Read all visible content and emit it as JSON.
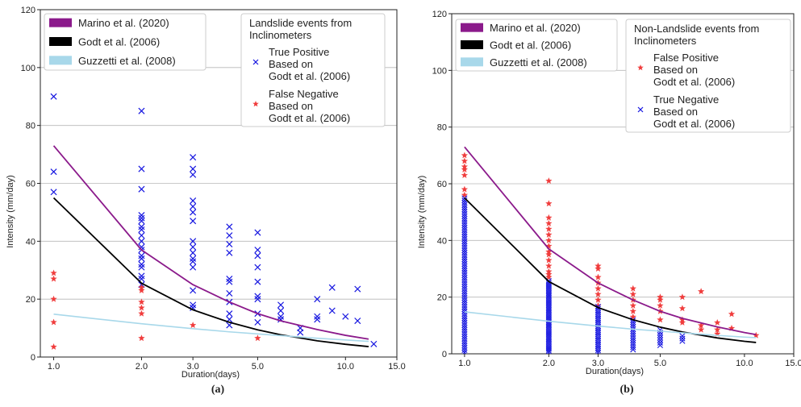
{
  "figure_caption_fragment": "",
  "panel_labels": [
    "(a)",
    "(b)"
  ],
  "chart_data": [
    {
      "type": "scatter",
      "panel_label": "(a)",
      "xlabel": "Duration(days)",
      "ylabel": "Intensity (mm/day)",
      "xscale": "log",
      "xlim": [
        0.9,
        15.0
      ],
      "ylim": [
        0,
        120
      ],
      "xticks": [
        "1.0",
        "2.0",
        "3.0",
        "5.0",
        "10.0",
        "15.0"
      ],
      "yticks": [
        "0",
        "20",
        "40",
        "60",
        "80",
        "100",
        "120"
      ],
      "grid": "horizontal",
      "curve_legend": [
        "Marino et al. (2020)",
        "Godt et al. (2006)",
        "Guzzetti et al. (2008)"
      ],
      "points_legend_title": [
        "Landslide events from",
        "Inclinometers"
      ],
      "points_legend": [
        {
          "label": [
            "True Positive",
            "Based on",
            "Godt et al. (2006)"
          ],
          "marker": "x",
          "color": "#1515e0"
        },
        {
          "label": [
            "False Negative",
            "Based on",
            " Godt et al. (2006)"
          ],
          "marker": "star",
          "color": "#f03c3c"
        }
      ],
      "curves": [
        {
          "name": "Marino et al. (2020)",
          "color": "#8b1a8b",
          "x": [
            1,
            2,
            3,
            4,
            5,
            6,
            8,
            10,
            12
          ],
          "y": [
            73,
            37,
            25,
            19,
            15,
            12.5,
            9.5,
            7.5,
            6.2
          ]
        },
        {
          "name": "Godt et al. (2006)",
          "color": "#000000",
          "x": [
            1,
            2,
            3,
            4,
            5,
            6,
            8,
            10,
            12
          ],
          "y": [
            55,
            25.5,
            16.3,
            12,
            9.4,
            7.7,
            5.6,
            4.4,
            3.6
          ]
        },
        {
          "name": "Guzzetti et al. (2008)",
          "color": "#a8d8ea",
          "x": [
            1,
            2,
            3,
            4,
            5,
            6,
            8,
            10,
            12
          ],
          "y": [
            14.8,
            11.5,
            9.8,
            8.7,
            8,
            7.4,
            6.5,
            5.9,
            5.4
          ]
        }
      ],
      "series": [
        {
          "name": "True Positive",
          "marker": "x",
          "color": "#1515e0",
          "points": [
            [
              1,
              90
            ],
            [
              1,
              64
            ],
            [
              1,
              57
            ],
            [
              2,
              85
            ],
            [
              2,
              65
            ],
            [
              2,
              58
            ],
            [
              2,
              49
            ],
            [
              2,
              48
            ],
            [
              2,
              47
            ],
            [
              2,
              45
            ],
            [
              2,
              44
            ],
            [
              2,
              42
            ],
            [
              2,
              40
            ],
            [
              2,
              38
            ],
            [
              2,
              37
            ],
            [
              2,
              35
            ],
            [
              2,
              34
            ],
            [
              2,
              32
            ],
            [
              2,
              31
            ],
            [
              2,
              28
            ],
            [
              2,
              27
            ],
            [
              2,
              25
            ],
            [
              3,
              69
            ],
            [
              3,
              65
            ],
            [
              3,
              63
            ],
            [
              3,
              54
            ],
            [
              3,
              52
            ],
            [
              3,
              50
            ],
            [
              3,
              47
            ],
            [
              3,
              40
            ],
            [
              3,
              38
            ],
            [
              3,
              36
            ],
            [
              3,
              34
            ],
            [
              3,
              33
            ],
            [
              3,
              31
            ],
            [
              3,
              23
            ],
            [
              3,
              18
            ],
            [
              3,
              17
            ],
            [
              4,
              45
            ],
            [
              4,
              42
            ],
            [
              4,
              39
            ],
            [
              4,
              36
            ],
            [
              4,
              27
            ],
            [
              4,
              26
            ],
            [
              4,
              22
            ],
            [
              4,
              19
            ],
            [
              4,
              15
            ],
            [
              4,
              13
            ],
            [
              4,
              11
            ],
            [
              5,
              43
            ],
            [
              5,
              37
            ],
            [
              5,
              35
            ],
            [
              5,
              31
            ],
            [
              5,
              26
            ],
            [
              5,
              21
            ],
            [
              5,
              20
            ],
            [
              5,
              15
            ],
            [
              5,
              12
            ],
            [
              6,
              18
            ],
            [
              6,
              16
            ],
            [
              6,
              14
            ],
            [
              6,
              13
            ],
            [
              7,
              10
            ],
            [
              7,
              8.5
            ],
            [
              8,
              20
            ],
            [
              8,
              14
            ],
            [
              8,
              13
            ],
            [
              9,
              24
            ],
            [
              9,
              16
            ],
            [
              10,
              14
            ],
            [
              11,
              23.5
            ],
            [
              11,
              12.5
            ],
            [
              12.5,
              4.5
            ]
          ]
        },
        {
          "name": "False Negative",
          "marker": "star",
          "color": "#f03c3c",
          "points": [
            [
              1,
              29
            ],
            [
              1,
              27
            ],
            [
              1,
              20
            ],
            [
              1,
              12
            ],
            [
              1,
              3.5
            ],
            [
              2,
              24
            ],
            [
              2,
              23
            ],
            [
              2,
              19
            ],
            [
              2,
              17
            ],
            [
              2,
              15
            ],
            [
              2,
              6.5
            ],
            [
              3,
              11
            ],
            [
              5,
              6.5
            ]
          ]
        }
      ]
    },
    {
      "type": "scatter",
      "panel_label": "(b)",
      "xlabel": "Duration(days)",
      "ylabel": "Intensity (mm/day)",
      "xscale": "log",
      "xlim": [
        0.9,
        15.0
      ],
      "ylim": [
        0,
        120
      ],
      "xticks": [
        "1.0",
        "2.0",
        "3.0",
        "5.0",
        "10.0",
        "15.0"
      ],
      "yticks": [
        "0",
        "20",
        "40",
        "60",
        "80",
        "100",
        "120"
      ],
      "grid": "horizontal",
      "curve_legend": [
        "Marino et al. (2020)",
        "Godt et al. (2006)",
        "Guzzetti et al. (2008)"
      ],
      "points_legend_title": [
        "Non-Landslide events from",
        "Inclinometers"
      ],
      "points_legend": [
        {
          "label": [
            "False Positive",
            "Based on",
            "Godt et al. (2006)"
          ],
          "marker": "star",
          "color": "#f03c3c"
        },
        {
          "label": [
            "True Negative",
            "Based on",
            " Godt et al. (2006)"
          ],
          "marker": "x",
          "color": "#1515e0"
        }
      ],
      "curves": [
        {
          "name": "Marino et al. (2020)",
          "color": "#8b1a8b",
          "x": [
            1,
            2,
            3,
            4,
            5,
            6,
            8,
            10,
            11
          ],
          "y": [
            73,
            37,
            25,
            19,
            15,
            12.5,
            9.5,
            7.5,
            6.8
          ]
        },
        {
          "name": "Godt et al. (2006)",
          "color": "#000000",
          "x": [
            1,
            2,
            3,
            4,
            5,
            6,
            8,
            10,
            11
          ],
          "y": [
            55,
            25.5,
            16.3,
            12,
            9.4,
            7.7,
            5.6,
            4.4,
            4
          ]
        },
        {
          "name": "Guzzetti et al. (2008)",
          "color": "#a8d8ea",
          "x": [
            1,
            2,
            3,
            4,
            5,
            6,
            8,
            10,
            11
          ],
          "y": [
            14.8,
            11.5,
            9.8,
            8.7,
            8,
            7.4,
            6.5,
            5.9,
            5.7
          ]
        }
      ],
      "series": [
        {
          "name": "False Positive",
          "marker": "star",
          "color": "#f03c3c",
          "points": [
            [
              1,
              70
            ],
            [
              1,
              68
            ],
            [
              1,
              66
            ],
            [
              1,
              65
            ],
            [
              1,
              63
            ],
            [
              1,
              58
            ],
            [
              1,
              56
            ],
            [
              2,
              61
            ],
            [
              2,
              53
            ],
            [
              2,
              48
            ],
            [
              2,
              46
            ],
            [
              2,
              44
            ],
            [
              2,
              42
            ],
            [
              2,
              40
            ],
            [
              2,
              38
            ],
            [
              2,
              36
            ],
            [
              2,
              35
            ],
            [
              2,
              33
            ],
            [
              2,
              31
            ],
            [
              2,
              29
            ],
            [
              2,
              28
            ],
            [
              2,
              27
            ],
            [
              3,
              31
            ],
            [
              3,
              30
            ],
            [
              3,
              27
            ],
            [
              3,
              25
            ],
            [
              3,
              23
            ],
            [
              3,
              21
            ],
            [
              3,
              19
            ],
            [
              3,
              17
            ],
            [
              4,
              23
            ],
            [
              4,
              21
            ],
            [
              4,
              19
            ],
            [
              4,
              17
            ],
            [
              4,
              15
            ],
            [
              4,
              13
            ],
            [
              5,
              20
            ],
            [
              5,
              19
            ],
            [
              5,
              17
            ],
            [
              5,
              15
            ],
            [
              5,
              12
            ],
            [
              6,
              20
            ],
            [
              6,
              16
            ],
            [
              6,
              12
            ],
            [
              6,
              11
            ],
            [
              7,
              22
            ],
            [
              7,
              10
            ],
            [
              7,
              8.5
            ],
            [
              8,
              11
            ],
            [
              8,
              8.5
            ],
            [
              8,
              7
            ],
            [
              9,
              14
            ],
            [
              9,
              9
            ],
            [
              11,
              6.5
            ]
          ]
        },
        {
          "name": "True Negative",
          "marker": "x",
          "color": "#1515e0",
          "columns": [
            [
              1,
              0.5,
              55,
              0.8
            ],
            [
              2,
              0.5,
              26,
              0.6
            ],
            [
              3,
              0.5,
              17,
              0.7
            ],
            [
              4,
              1.5,
              12.5,
              0.8
            ],
            [
              5,
              3,
              9,
              0.9
            ],
            [
              6,
              4.5,
              7,
              0.9
            ]
          ]
        }
      ]
    }
  ]
}
